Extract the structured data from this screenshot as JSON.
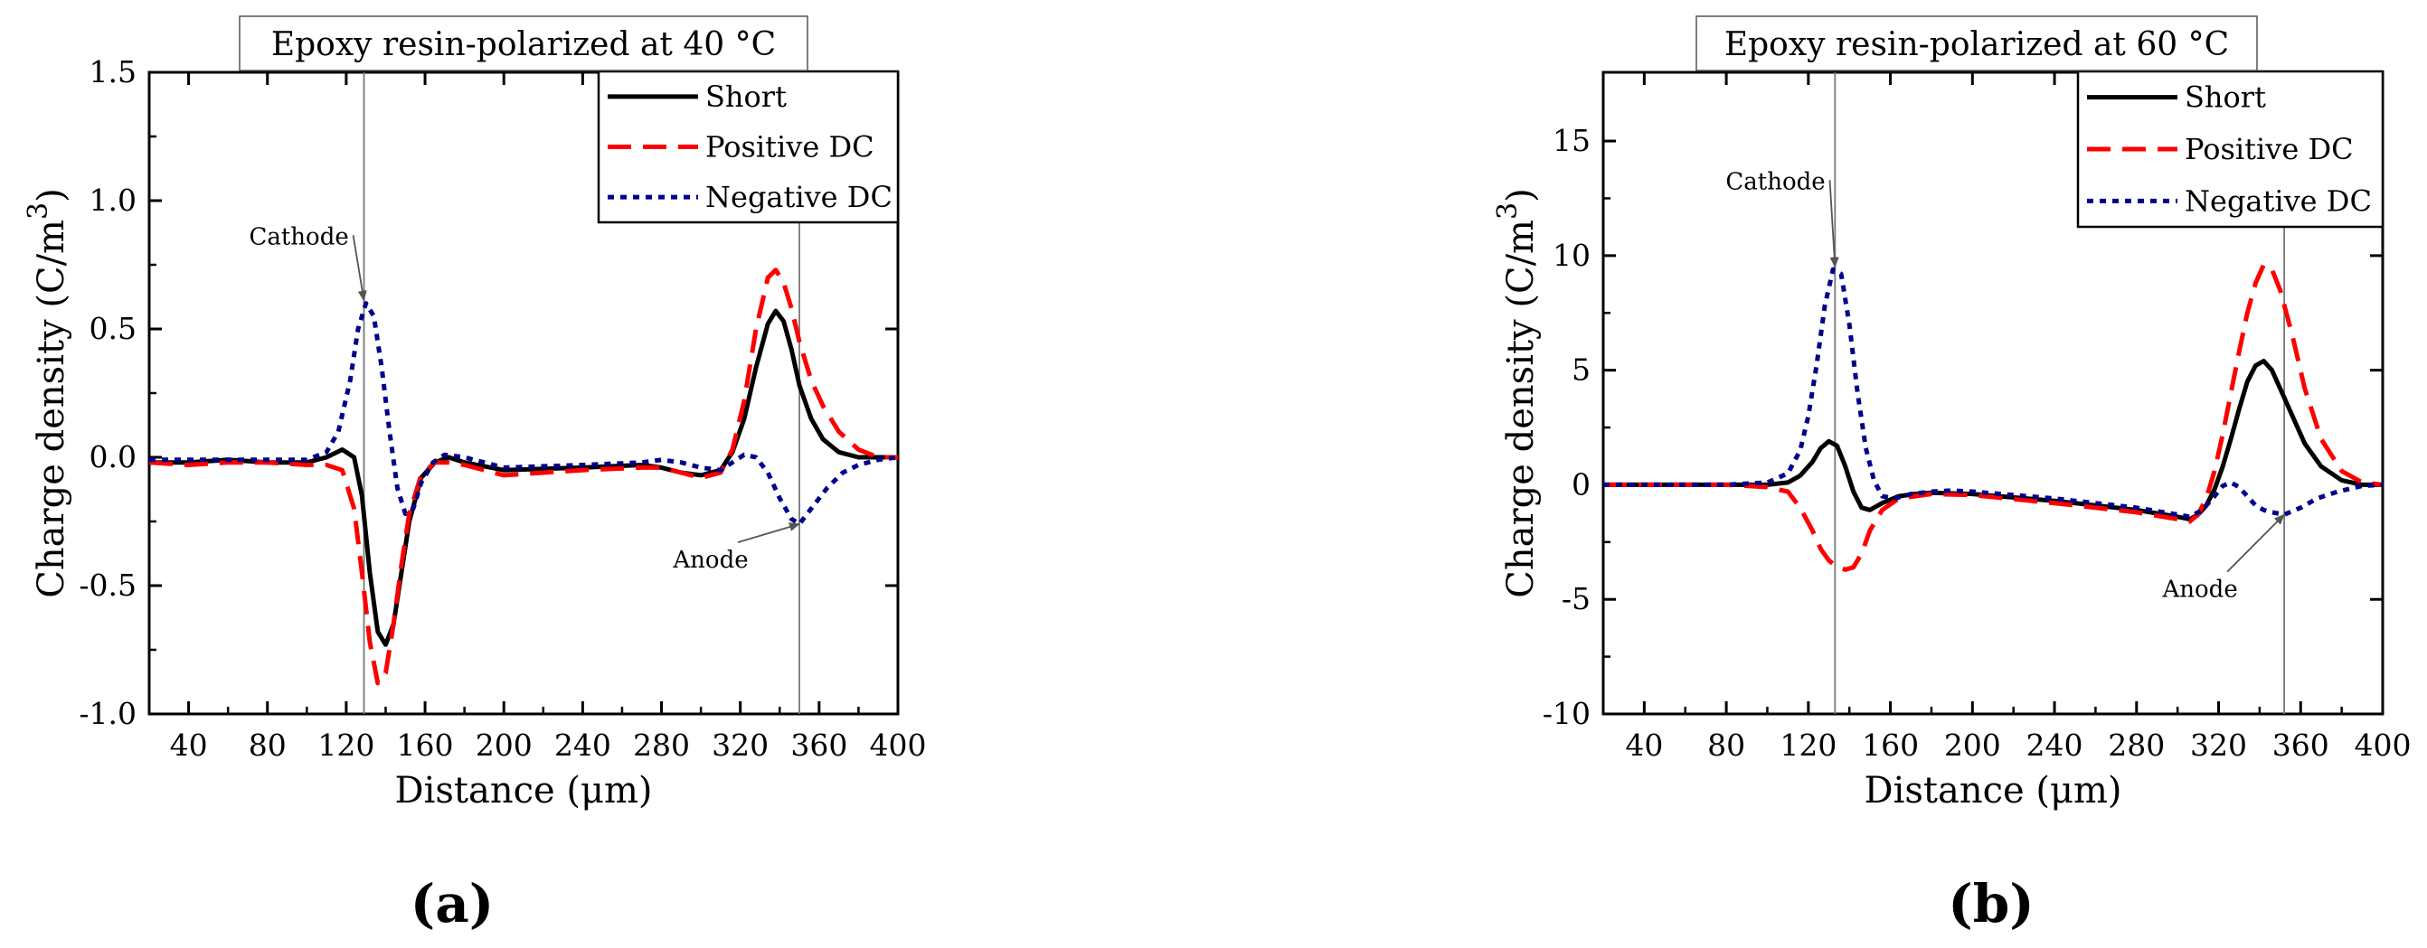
{
  "chart_data": [
    {
      "type": "line",
      "panel_label": "(a)",
      "title": "Epoxy resin-polarized at 40 °C",
      "xlabel": "Distance (μm)",
      "ylabel": "Charge density (C/m",
      "ylabel_sup": "3",
      "ylabel_close": ")",
      "xlim": [
        20,
        400
      ],
      "ylim": [
        -1.0,
        1.5
      ],
      "xticks": [
        40,
        80,
        120,
        160,
        200,
        240,
        280,
        320,
        360,
        400
      ],
      "yticks": [
        -1.0,
        -0.5,
        0.0,
        0.5,
        1.0,
        1.5
      ],
      "ytick_labels": [
        "-1.0",
        "-0.5",
        "0.0",
        "0.5",
        "1.0",
        "1.5"
      ],
      "vlines": [
        129,
        350
      ],
      "legend": {
        "position": "top-right"
      },
      "annotations": [
        {
          "text": "Cathode",
          "point": [
            129,
            0.61
          ],
          "text_at": [
            96,
            0.83
          ]
        },
        {
          "text": "Anode",
          "point": [
            350,
            -0.26
          ],
          "text_at": [
            305,
            -0.43
          ]
        }
      ],
      "series": [
        {
          "name": "Short",
          "color": "#000000",
          "style": "solid",
          "x": [
            20,
            40,
            60,
            80,
            100,
            110,
            118,
            124,
            128,
            132,
            136,
            140,
            144,
            148,
            152,
            158,
            165,
            172,
            180,
            200,
            240,
            270,
            280,
            290,
            300,
            310,
            316,
            322,
            328,
            334,
            338,
            342,
            346,
            350,
            356,
            362,
            370,
            380,
            390,
            400
          ],
          "y": [
            -0.02,
            -0.02,
            -0.01,
            -0.02,
            -0.02,
            0.0,
            0.03,
            0.0,
            -0.15,
            -0.45,
            -0.68,
            -0.73,
            -0.65,
            -0.45,
            -0.25,
            -0.08,
            -0.02,
            0.0,
            -0.02,
            -0.05,
            -0.04,
            -0.03,
            -0.04,
            -0.06,
            -0.07,
            -0.05,
            0.02,
            0.15,
            0.35,
            0.52,
            0.57,
            0.53,
            0.42,
            0.28,
            0.15,
            0.07,
            0.02,
            0.0,
            0.0,
            0.0
          ]
        },
        {
          "name": "Positive DC",
          "color": "#ff0000",
          "style": "dash",
          "x": [
            20,
            40,
            60,
            80,
            100,
            110,
            118,
            124,
            128,
            132,
            136,
            140,
            144,
            148,
            152,
            158,
            165,
            172,
            180,
            200,
            240,
            270,
            280,
            290,
            300,
            310,
            316,
            322,
            328,
            334,
            338,
            342,
            346,
            350,
            356,
            362,
            370,
            380,
            390,
            400
          ],
          "y": [
            -0.02,
            -0.03,
            -0.02,
            -0.02,
            -0.03,
            -0.03,
            -0.05,
            -0.2,
            -0.45,
            -0.72,
            -0.88,
            -0.84,
            -0.65,
            -0.42,
            -0.22,
            -0.07,
            -0.02,
            -0.02,
            -0.03,
            -0.07,
            -0.05,
            -0.04,
            -0.04,
            -0.06,
            -0.08,
            -0.06,
            0.03,
            0.22,
            0.5,
            0.7,
            0.73,
            0.68,
            0.58,
            0.45,
            0.3,
            0.2,
            0.1,
            0.03,
            0.0,
            0.0
          ]
        },
        {
          "name": "Negative DC",
          "color": "#00008b",
          "style": "dot",
          "x": [
            20,
            40,
            60,
            80,
            100,
            110,
            116,
            122,
            126,
            130,
            134,
            138,
            142,
            146,
            150,
            154,
            158,
            164,
            170,
            180,
            200,
            240,
            270,
            280,
            290,
            300,
            310,
            316,
            322,
            328,
            334,
            340,
            346,
            350,
            356,
            364,
            372,
            380,
            390,
            400
          ],
          "y": [
            -0.01,
            -0.01,
            -0.01,
            -0.01,
            -0.01,
            0.02,
            0.1,
            0.3,
            0.5,
            0.6,
            0.55,
            0.35,
            0.1,
            -0.12,
            -0.22,
            -0.2,
            -0.1,
            -0.02,
            0.01,
            0.0,
            -0.04,
            -0.03,
            -0.02,
            -0.01,
            -0.02,
            -0.04,
            -0.05,
            -0.02,
            0.01,
            0.0,
            -0.06,
            -0.16,
            -0.24,
            -0.26,
            -0.2,
            -0.12,
            -0.06,
            -0.03,
            -0.01,
            0.0
          ]
        }
      ]
    },
    {
      "type": "line",
      "panel_label": "(b)",
      "title": "Epoxy resin-polarized at 60 °C",
      "xlabel": "Distance (μm)",
      "ylabel": "Charge density (C/m",
      "ylabel_sup": "3",
      "ylabel_close": ")",
      "xlim": [
        20,
        400
      ],
      "ylim": [
        -10,
        18
      ],
      "xticks": [
        40,
        80,
        120,
        160,
        200,
        240,
        280,
        320,
        360,
        400
      ],
      "yticks": [
        -10,
        -5,
        0,
        5,
        10,
        15
      ],
      "ytick_labels": [
        "-10",
        "-5",
        "0",
        "5",
        "10",
        "15"
      ],
      "vlines": [
        133,
        352
      ],
      "legend": {
        "position": "top-right"
      },
      "annotations": [
        {
          "text": "Cathode",
          "point": [
            133,
            9.5
          ],
          "text_at": [
            104,
            12.9
          ]
        },
        {
          "text": "Anode",
          "point": [
            352,
            -1.3
          ],
          "text_at": [
            311,
            -4.9
          ]
        }
      ],
      "series": [
        {
          "name": "Short",
          "color": "#000000",
          "style": "solid",
          "x": [
            20,
            40,
            60,
            80,
            100,
            110,
            116,
            122,
            126,
            130,
            134,
            138,
            142,
            146,
            150,
            156,
            164,
            172,
            180,
            200,
            240,
            280,
            300,
            306,
            310,
            314,
            318,
            322,
            326,
            330,
            334,
            338,
            342,
            346,
            350,
            356,
            362,
            370,
            380,
            390,
            400
          ],
          "y": [
            0,
            0,
            0,
            0,
            0,
            0.1,
            0.4,
            1.0,
            1.6,
            1.9,
            1.7,
            0.8,
            -0.3,
            -1.0,
            -1.1,
            -0.8,
            -0.5,
            -0.4,
            -0.35,
            -0.4,
            -0.7,
            -1.1,
            -1.4,
            -1.5,
            -1.3,
            -0.9,
            -0.2,
            0.8,
            2.0,
            3.3,
            4.5,
            5.2,
            5.4,
            5.0,
            4.2,
            3.0,
            1.8,
            0.8,
            0.2,
            0.0,
            0.0
          ]
        },
        {
          "name": "Positive DC",
          "color": "#ff0000",
          "style": "dash",
          "x": [
            20,
            40,
            60,
            80,
            100,
            110,
            116,
            122,
            126,
            130,
            134,
            138,
            142,
            146,
            150,
            156,
            164,
            172,
            180,
            200,
            240,
            280,
            300,
            306,
            310,
            314,
            318,
            322,
            326,
            330,
            334,
            338,
            342,
            346,
            350,
            356,
            362,
            370,
            380,
            390,
            400
          ],
          "y": [
            0,
            0,
            0,
            0,
            -0.1,
            -0.3,
            -1.0,
            -2.0,
            -2.8,
            -3.3,
            -3.6,
            -3.7,
            -3.6,
            -3.0,
            -2.0,
            -1.1,
            -0.6,
            -0.5,
            -0.4,
            -0.45,
            -0.8,
            -1.2,
            -1.5,
            -1.6,
            -1.3,
            -0.6,
            0.6,
            2.2,
            4.0,
            5.8,
            7.5,
            8.8,
            9.6,
            9.4,
            8.5,
            6.5,
            4.2,
            2.0,
            0.6,
            0.1,
            0.0
          ]
        },
        {
          "name": "Negative DC",
          "color": "#00008b",
          "style": "dot",
          "x": [
            20,
            40,
            60,
            80,
            100,
            110,
            116,
            120,
            124,
            128,
            132,
            136,
            140,
            144,
            148,
            152,
            156,
            162,
            170,
            180,
            190,
            200,
            240,
            280,
            300,
            306,
            312,
            318,
            322,
            326,
            330,
            334,
            338,
            342,
            346,
            352,
            360,
            368,
            378,
            390,
            400
          ],
          "y": [
            0,
            0,
            0,
            0,
            0.1,
            0.5,
            1.5,
            3.0,
            5.2,
            7.8,
            9.4,
            9.2,
            7.0,
            4.0,
            1.6,
            0.2,
            -0.5,
            -0.6,
            -0.4,
            -0.3,
            -0.25,
            -0.3,
            -0.6,
            -1.0,
            -1.3,
            -1.4,
            -1.1,
            -0.5,
            -0.05,
            0.1,
            -0.1,
            -0.5,
            -0.9,
            -1.1,
            -1.2,
            -1.3,
            -1.0,
            -0.6,
            -0.3,
            -0.05,
            0.0
          ]
        }
      ]
    }
  ]
}
